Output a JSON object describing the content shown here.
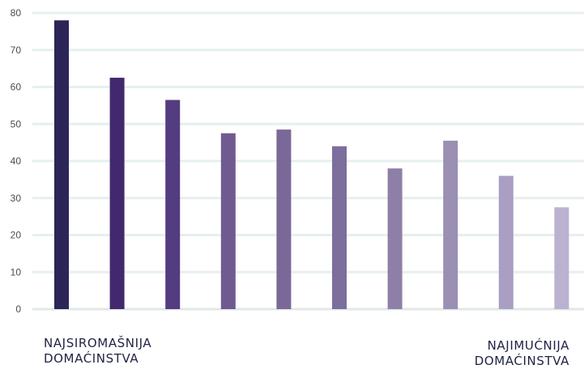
{
  "chart_data": {
    "type": "bar",
    "values": [
      78,
      62.5,
      56.5,
      47.5,
      48.5,
      44,
      38,
      45.5,
      36,
      27.5
    ],
    "colors": [
      "#2b2657",
      "#42296e",
      "#533c80",
      "#6f5b8f",
      "#7a6898",
      "#7c6e9d",
      "#8e7fa8",
      "#9b8fb4",
      "#aa9fc2",
      "#bab2cf"
    ],
    "ylim": [
      0,
      80
    ],
    "yticks": [
      0,
      10,
      20,
      30,
      40,
      50,
      60,
      70,
      80
    ],
    "grid": true,
    "left_label": [
      "NAJSIROMAŠNIJA",
      "DOMAĆINSTVA"
    ],
    "right_label": [
      "NAJIMUĆNIJA",
      "DOMAĆINSTVA"
    ]
  }
}
